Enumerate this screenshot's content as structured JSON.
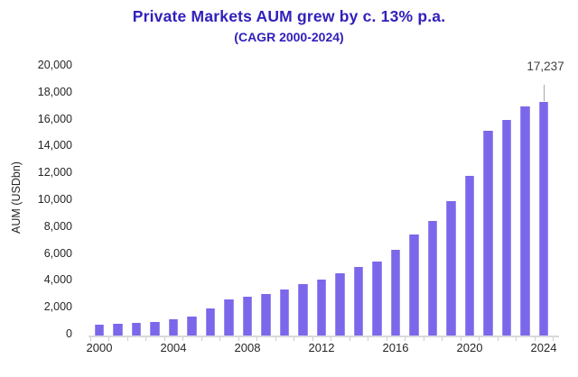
{
  "title": "Private Markets AUM grew by c. 13% p.a.",
  "subtitle": "(CAGR 2000-2024)",
  "accent_color": "#3120BC",
  "bar_color": "#7a67ea",
  "chart_data": {
    "type": "bar",
    "title": "Private Markets AUM grew by c. 13% p.a.",
    "subtitle": "(CAGR 2000-2024)",
    "xlabel": "",
    "ylabel": "AUM (USDbn)",
    "ylim": [
      0,
      20000
    ],
    "ytick_step": 2000,
    "ytick_labels": [
      "0",
      "2,000",
      "4,000",
      "6,000",
      "8,000",
      "10,000",
      "12,000",
      "14,000",
      "16,000",
      "18,000",
      "20,000"
    ],
    "grid": false,
    "legend": false,
    "categories": [
      2000,
      2001,
      2002,
      2003,
      2004,
      2005,
      2006,
      2007,
      2008,
      2009,
      2010,
      2011,
      2012,
      2013,
      2014,
      2015,
      2016,
      2017,
      2018,
      2019,
      2020,
      2021,
      2022,
      2023,
      2024
    ],
    "values": [
      820,
      870,
      910,
      1020,
      1170,
      1420,
      1980,
      2650,
      2890,
      3050,
      3400,
      3790,
      4140,
      4580,
      5040,
      5470,
      6310,
      7450,
      8480,
      9940,
      11830,
      15160,
      15910,
      16920,
      17237
    ],
    "xtick_labels": [
      "2000",
      "2004",
      "2008",
      "2012",
      "2016",
      "2020",
      "2024"
    ],
    "annotation": {
      "text": "17,237",
      "category": 2024
    }
  }
}
